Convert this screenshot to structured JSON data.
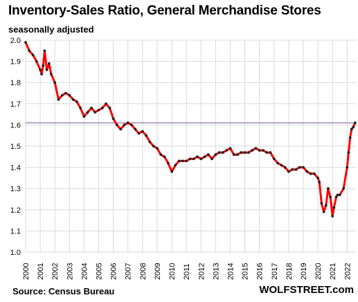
{
  "chart_data": {
    "type": "line",
    "title": "Inventory-Sales Ratio, General Merchandise Stores",
    "subtitle": "seasonally adjusted",
    "source": "Source: Census Bureau",
    "brand": "WOLFSTREET.com",
    "xlim": [
      2000,
      2022.6
    ],
    "ylim": [
      1.0,
      2.0
    ],
    "x_ticks": [
      "2000",
      "2001",
      "2002",
      "2003",
      "2004",
      "2005",
      "2006",
      "2007",
      "2008",
      "2009",
      "2010",
      "2011",
      "2012",
      "2013",
      "2014",
      "2015",
      "2016",
      "2017",
      "2018",
      "2019",
      "2020",
      "2021",
      "2022"
    ],
    "y_ticks": [
      "1.0",
      "1.1",
      "1.2",
      "1.3",
      "1.4",
      "1.5",
      "1.6",
      "1.7",
      "1.8",
      "1.9",
      "2.0"
    ],
    "grid": true,
    "reference_line": 1.61,
    "colors": {
      "line": "#ff0000",
      "marker": "#222222",
      "reference": "#7b5a8a",
      "grid": "#d9d9d9"
    },
    "series": [
      {
        "x": [
          2000.0,
          2000.25,
          2000.5,
          2000.75,
          2001.0,
          2001.1,
          2001.2,
          2001.3,
          2001.45,
          2001.6,
          2001.75,
          2002.0,
          2002.25,
          2002.5,
          2002.75,
          2003.0,
          2003.25,
          2003.5,
          2003.75,
          2004.0,
          2004.25,
          2004.5,
          2004.75,
          2005.0,
          2005.25,
          2005.5,
          2005.75,
          2006.0,
          2006.25,
          2006.5,
          2006.75,
          2007.0,
          2007.25,
          2007.5,
          2007.75,
          2008.0,
          2008.25,
          2008.5,
          2008.75,
          2009.0,
          2009.25,
          2009.5,
          2009.75,
          2010.0,
          2010.25,
          2010.5,
          2010.75,
          2011.0,
          2011.25,
          2011.5,
          2011.75,
          2012.0,
          2012.25,
          2012.5,
          2012.75,
          2013.0,
          2013.25,
          2013.5,
          2013.75,
          2014.0,
          2014.25,
          2014.5,
          2014.75,
          2015.0,
          2015.25,
          2015.5,
          2015.75,
          2016.0,
          2016.25,
          2016.5,
          2016.75,
          2017.0,
          2017.25,
          2017.5,
          2017.75,
          2018.0,
          2018.25,
          2018.5,
          2018.75,
          2019.0,
          2019.25,
          2019.5,
          2019.75,
          2020.0,
          2020.1,
          2020.25,
          2020.4,
          2020.55,
          2020.7,
          2020.85,
          2021.0,
          2021.1,
          2021.25,
          2021.35,
          2021.5,
          2021.75,
          2022.0,
          2022.1,
          2022.2,
          2022.3,
          2022.42,
          2022.55
        ],
        "y": [
          1.99,
          1.95,
          1.93,
          1.9,
          1.86,
          1.84,
          1.88,
          1.95,
          1.86,
          1.89,
          1.84,
          1.8,
          1.72,
          1.74,
          1.75,
          1.74,
          1.72,
          1.71,
          1.68,
          1.64,
          1.66,
          1.68,
          1.66,
          1.67,
          1.68,
          1.7,
          1.68,
          1.63,
          1.6,
          1.58,
          1.6,
          1.61,
          1.6,
          1.58,
          1.56,
          1.57,
          1.55,
          1.52,
          1.5,
          1.49,
          1.46,
          1.45,
          1.42,
          1.38,
          1.41,
          1.43,
          1.43,
          1.43,
          1.44,
          1.44,
          1.45,
          1.44,
          1.45,
          1.46,
          1.44,
          1.46,
          1.47,
          1.47,
          1.48,
          1.49,
          1.46,
          1.46,
          1.47,
          1.47,
          1.47,
          1.48,
          1.49,
          1.48,
          1.48,
          1.47,
          1.47,
          1.44,
          1.42,
          1.41,
          1.4,
          1.38,
          1.39,
          1.39,
          1.4,
          1.4,
          1.38,
          1.37,
          1.37,
          1.35,
          1.33,
          1.23,
          1.19,
          1.22,
          1.3,
          1.26,
          1.17,
          1.21,
          1.26,
          1.27,
          1.27,
          1.3,
          1.4,
          1.47,
          1.54,
          1.58,
          1.59,
          1.61
        ]
      }
    ]
  }
}
